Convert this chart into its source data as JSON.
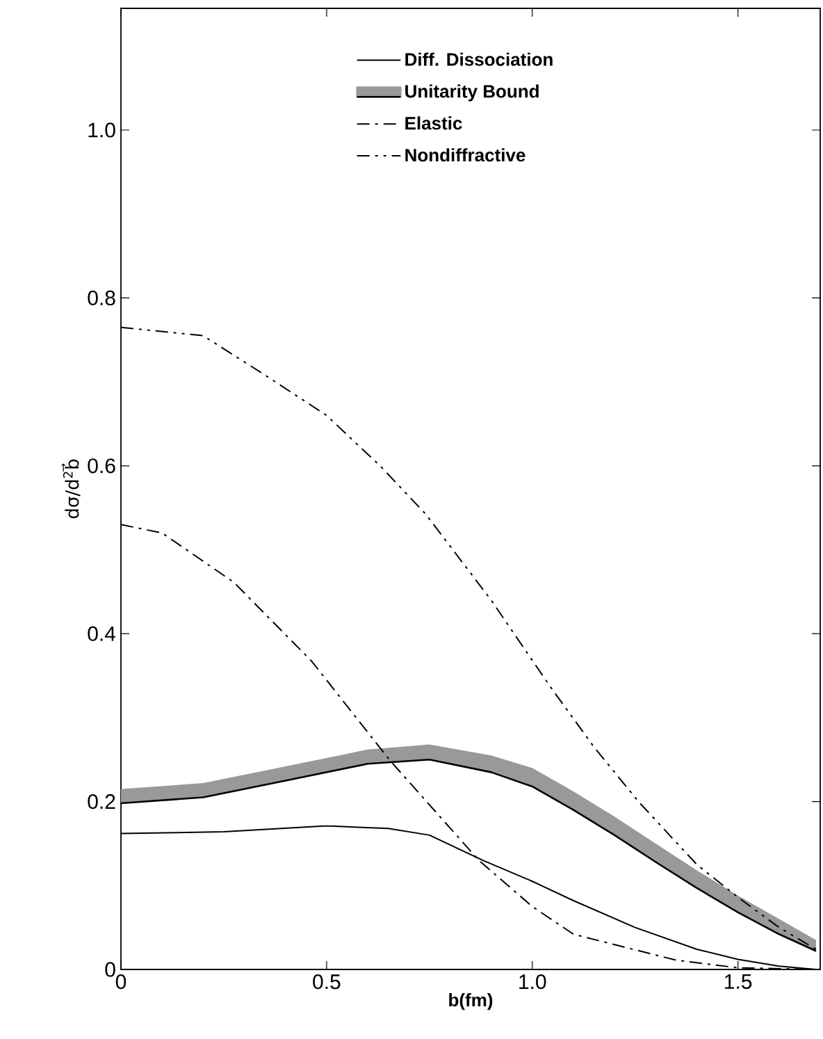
{
  "chart_data": {
    "type": "line",
    "xlabel": "b(fm)",
    "ylabel": "dσ/d$^{2}$b⃗",
    "xlim": [
      0,
      1.7
    ],
    "ylim": [
      0,
      1.145
    ],
    "xticks": [
      0,
      0.5,
      {
        "value": 1.0,
        "label": "1.0"
      },
      1.5
    ],
    "yticks": [
      0,
      0.2,
      0.4,
      0.6,
      0.8,
      {
        "value": 1.0,
        "label": "1.0"
      }
    ],
    "legend": "top",
    "grid": false,
    "series": [
      {
        "name": "Diff. Dissociation",
        "color": "#000000",
        "line_style": "solid",
        "x": [
          0,
          0.25,
          0.5,
          0.65,
          0.75,
          0.88,
          1.0,
          1.1,
          1.25,
          1.4,
          1.5,
          1.6,
          1.69
        ],
        "values": [
          0.162,
          0.164,
          0.171,
          0.168,
          0.16,
          0.13,
          0.105,
          0.082,
          0.05,
          0.024,
          0.012,
          0.004,
          0.0
        ]
      },
      {
        "name": "Unitarity Bound",
        "color": "#000000",
        "line_style": "solid",
        "x": [
          0,
          0.2,
          0.4,
          0.6,
          0.75,
          0.9,
          1.0,
          1.1,
          1.2,
          1.3,
          1.4,
          1.5,
          1.6,
          1.69
        ],
        "values": [
          0.198,
          0.205,
          0.225,
          0.245,
          0.25,
          0.235,
          0.218,
          0.19,
          0.16,
          0.128,
          0.097,
          0.068,
          0.042,
          0.022
        ],
        "lower": [
          0.198,
          0.205,
          0.225,
          0.245,
          0.25,
          0.235,
          0.218,
          0.19,
          0.16,
          0.128,
          0.097,
          0.068,
          0.042,
          0.022
        ],
        "upper": [
          0.215,
          0.222,
          0.242,
          0.262,
          0.268,
          0.255,
          0.24,
          0.212,
          0.182,
          0.15,
          0.118,
          0.088,
          0.06,
          0.035
        ]
      },
      {
        "name": "Elastic",
        "color": "#000000",
        "line_style": "dashdot",
        "x": [
          0,
          0.1,
          0.275,
          0.464,
          0.654,
          0.87,
          1.0,
          1.1,
          1.35,
          1.5,
          1.69
        ],
        "values": [
          0.53,
          0.52,
          0.461,
          0.367,
          0.249,
          0.13,
          0.075,
          0.042,
          0.011,
          0.002,
          0.0
        ]
      },
      {
        "name": "Nondiffractive",
        "color": "#000000",
        "line_style": "dashdotdot",
        "x": [
          0,
          0.2,
          0.36,
          0.5,
          0.63,
          0.74,
          0.9,
          1.045,
          1.15,
          1.26,
          1.4,
          1.5,
          1.6,
          1.69
        ],
        "values": [
          0.765,
          0.755,
          0.705,
          0.66,
          0.6,
          0.543,
          0.44,
          0.336,
          0.265,
          0.199,
          0.125,
          0.086,
          0.05,
          0.024
        ]
      }
    ]
  }
}
